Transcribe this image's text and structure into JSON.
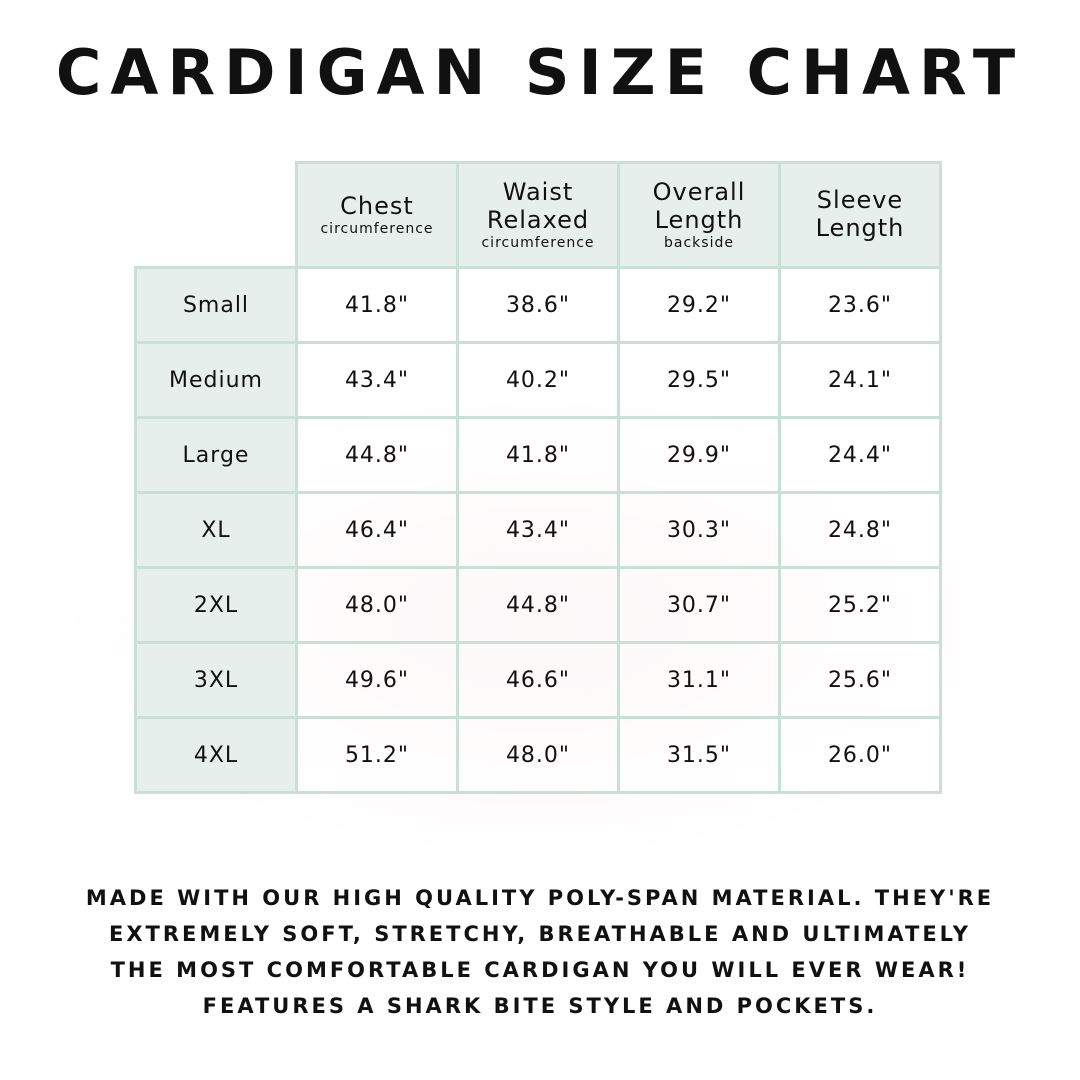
{
  "title": "CARDIGAN SIZE CHART",
  "columns": [
    {
      "main": "Chest",
      "sub": "circumference"
    },
    {
      "main": "Waist Relaxed",
      "sub": "circumference"
    },
    {
      "main": "Overall Length",
      "sub": "backside"
    },
    {
      "main": "Sleeve Length",
      "sub": ""
    }
  ],
  "rows": [
    {
      "size": "Small",
      "values": [
        "41.8\"",
        "38.6\"",
        "29.2\"",
        "23.6\""
      ]
    },
    {
      "size": "Medium",
      "values": [
        "43.4\"",
        "40.2\"",
        "29.5\"",
        "24.1\""
      ]
    },
    {
      "size": "Large",
      "values": [
        "44.8\"",
        "41.8\"",
        "29.9\"",
        "24.4\""
      ]
    },
    {
      "size": "XL",
      "values": [
        "46.4\"",
        "43.4\"",
        "30.3\"",
        "24.8\""
      ]
    },
    {
      "size": "2XL",
      "values": [
        "48.0\"",
        "44.8\"",
        "30.7\"",
        "25.2\""
      ]
    },
    {
      "size": "3XL",
      "values": [
        "49.6\"",
        "46.6\"",
        "31.1\"",
        "25.6\""
      ]
    },
    {
      "size": "4XL",
      "values": [
        "51.2\"",
        "48.0\"",
        "31.5\"",
        "26.0\""
      ]
    }
  ],
  "footer": [
    "MADE WITH OUR HIGH QUALITY POLY-SPAN MATERIAL. THEY'RE",
    "EXTREMELY SOFT, STRETCHY, BREATHABLE AND ULTIMATELY",
    "THE MOST COMFORTABLE CARDIGAN YOU WILL EVER WEAR!",
    "FEATURES A SHARK BITE STYLE AND POCKETS."
  ],
  "colors": {
    "header_bg": "#e6efeb",
    "border": "#c9e0d6"
  }
}
